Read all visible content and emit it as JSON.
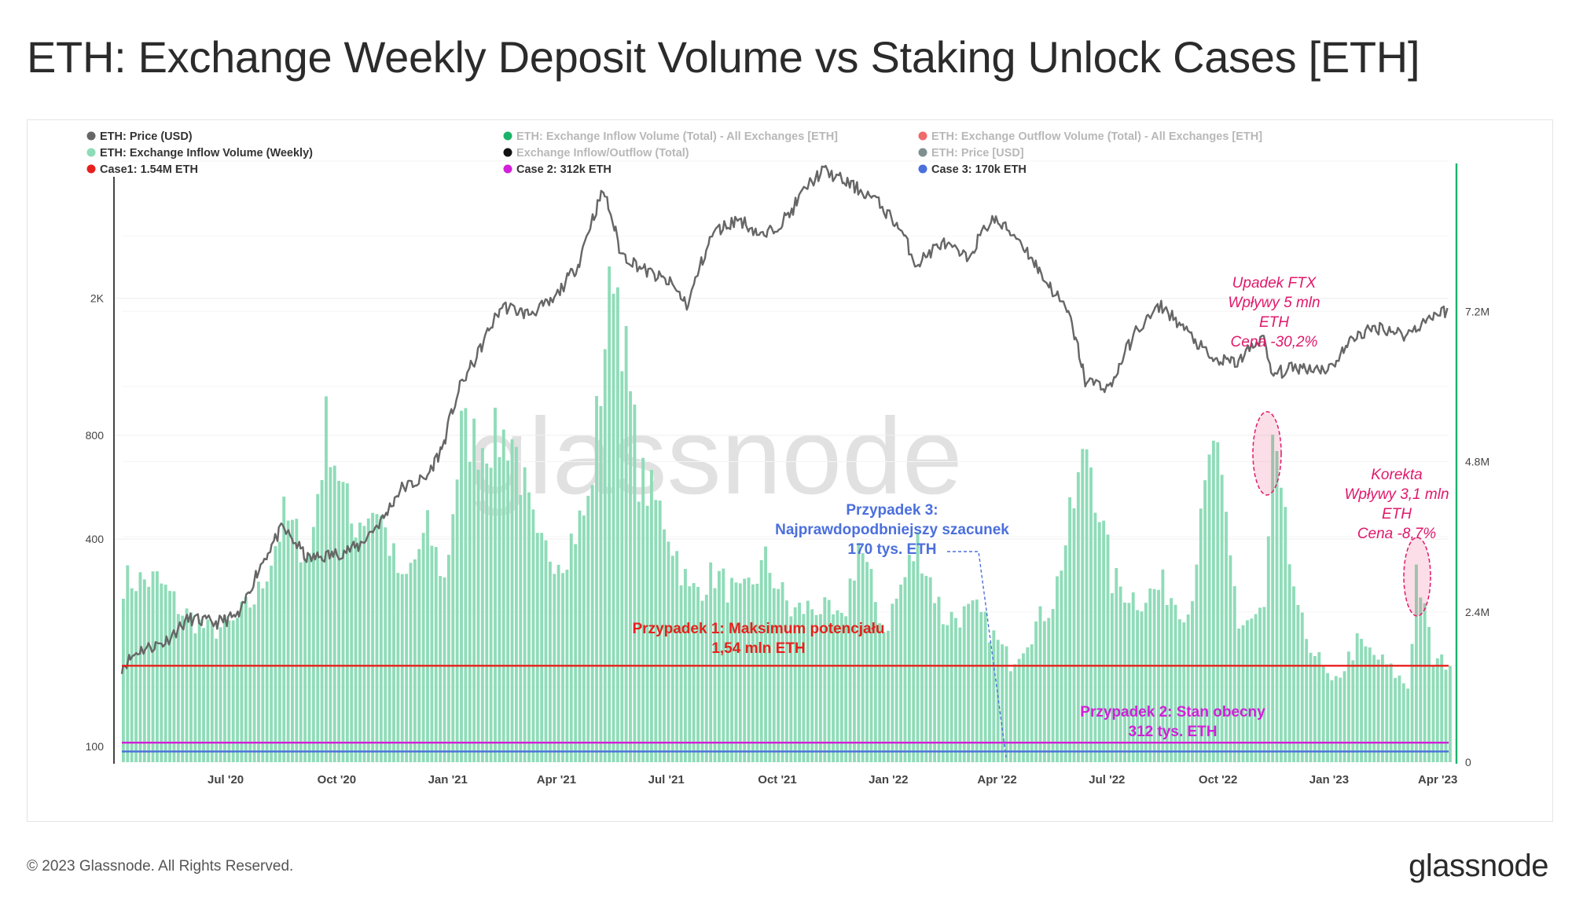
{
  "title": "ETH: Exchange Weekly Deposit Volume vs Staking Unlock Cases [ETH]",
  "footer": {
    "copyright": "© 2023 Glassnode. All Rights Reserved.",
    "logo": "glassnode"
  },
  "watermark": "glassnode",
  "legend": [
    {
      "label": "ETH: Price (USD)",
      "color": "#666666",
      "dim": false
    },
    {
      "label": "ETH: Exchange Inflow Volume (Total) - All Exchanges [ETH]",
      "color": "#1bb36b",
      "dim": true
    },
    {
      "label": "ETH: Exchange Outflow Volume (Total) - All Exchanges [ETH]",
      "color": "#f06a6a",
      "dim": true
    },
    {
      "label": "ETH: Exchange Inflow Volume (Weekly)",
      "color": "#8fdcb8",
      "dim": false
    },
    {
      "label": "Exchange Inflow/Outflow (Total)",
      "color": "#111111",
      "dim": true
    },
    {
      "label": "ETH: Price [USD]",
      "color": "#7f8f8f",
      "dim": true
    },
    {
      "label": "Case1: 1.54M ETH",
      "color": "#e8201d",
      "dim": false
    },
    {
      "label": "Case 2: 312k ETH",
      "color": "#d21fd8",
      "dim": false
    },
    {
      "label": "Case 3: 170k ETH",
      "color": "#4b6fdc",
      "dim": false
    }
  ],
  "annotations": {
    "case1": [
      "Przypadek 1: Maksimum potencjału",
      "1,54 mln ETH"
    ],
    "case2": [
      "Przypadek 2: Stan obecny",
      "312 tys. ETH"
    ],
    "case3": [
      "Przypadek 3:",
      "Najprawdopodbniejszy szacunek",
      "170 tys. ETH"
    ],
    "ftx": [
      "Upadek FTX",
      "Wpływy 5 mln",
      "ETH",
      "Cena -30,2%"
    ],
    "korekta": [
      "Korekta",
      "Wpływy 3,1 mln",
      "ETH",
      "Cena -8,7%"
    ]
  },
  "colors": {
    "bars": "#8fdcb8",
    "price": "#666666",
    "case1": "#e8201d",
    "case2": "#d21fd8",
    "case3": "#4b6fdc",
    "annotation_pink": "#e0186b",
    "right_axis": "#1bb36b"
  },
  "chart_data": {
    "type": "bar",
    "x_ticks": [
      "Jul '20",
      "Oct '20",
      "Jan '21",
      "Apr '21",
      "Jul '21",
      "Oct '21",
      "Jan '22",
      "Apr '22",
      "Jul '22",
      "Oct '22",
      "Jan '23",
      "Apr '23"
    ],
    "x_tick_dates": [
      "2020-07-01",
      "2020-10-01",
      "2021-01-01",
      "2021-04-01",
      "2021-07-01",
      "2021-10-01",
      "2022-01-01",
      "2022-04-01",
      "2022-07-01",
      "2022-10-01",
      "2023-01-01",
      "2023-04-01"
    ],
    "x_range": [
      "2020-04-06",
      "2023-04-10"
    ],
    "left_axis": {
      "scale": "log",
      "ticks": [
        100,
        400,
        800,
        2000
      ],
      "tick_labels": [
        "100",
        "400",
        "800",
        "2K"
      ],
      "range": [
        90,
        5000
      ]
    },
    "right_axis": {
      "scale": "linear",
      "ticks": [
        0,
        2400000,
        4800000,
        7200000
      ],
      "tick_labels": [
        "0",
        "2.4M",
        "4.8M",
        "7.2M"
      ],
      "range": [
        0,
        9600000
      ]
    },
    "reference_lines": [
      {
        "name": "Case1: 1.54M ETH",
        "value": 1540000,
        "axis": "right"
      },
      {
        "name": "Case 2: 312k ETH",
        "value": 312000,
        "axis": "right"
      },
      {
        "name": "Case 3: 170k ETH",
        "value": 170000,
        "axis": "right"
      }
    ],
    "series": [
      {
        "name": "ETH: Exchange Inflow Volume (Weekly)",
        "axis": "right",
        "type": "area",
        "points": [
          [
            "2020-04-06",
            2900000.0
          ],
          [
            "2020-05-04",
            2900000.0
          ],
          [
            "2020-05-25",
            2400000.0
          ],
          [
            "2020-06-15",
            2100000.0
          ],
          [
            "2020-07-06",
            2200000.0
          ],
          [
            "2020-07-27",
            2700000.0
          ],
          [
            "2020-08-17",
            3900000.0
          ],
          [
            "2020-09-07",
            3300000.0
          ],
          [
            "2020-09-21",
            5400000.0
          ],
          [
            "2020-10-12",
            3800000.0
          ],
          [
            "2020-11-02",
            4100000.0
          ],
          [
            "2020-11-23",
            2800000.0
          ],
          [
            "2020-12-14",
            3700000.0
          ],
          [
            "2020-12-28",
            2900000.0
          ],
          [
            "2021-01-11",
            5300000.0
          ],
          [
            "2021-01-25",
            5100000.0
          ],
          [
            "2021-02-22",
            5200000.0
          ],
          [
            "2021-03-15",
            3400000.0
          ],
          [
            "2021-04-05",
            3300000.0
          ],
          [
            "2021-04-26",
            4100000.0
          ],
          [
            "2021-05-17",
            8100000.0
          ],
          [
            "2021-06-07",
            4600000.0
          ],
          [
            "2021-06-28",
            3900000.0
          ],
          [
            "2021-07-19",
            2700000.0
          ],
          [
            "2021-08-09",
            3000000.0
          ],
          [
            "2021-08-30",
            2600000.0
          ],
          [
            "2021-09-20",
            3200000.0
          ],
          [
            "2021-10-11",
            2400000.0
          ],
          [
            "2021-11-01",
            2500000.0
          ],
          [
            "2021-11-22",
            2200000.0
          ],
          [
            "2021-12-06",
            3500000.0
          ],
          [
            "2021-12-27",
            2100000.0
          ],
          [
            "2022-01-24",
            3500000.0
          ],
          [
            "2022-02-14",
            2300000.0
          ],
          [
            "2022-03-14",
            2400000.0
          ],
          [
            "2022-04-11",
            1600000.0
          ],
          [
            "2022-05-16",
            2600000.0
          ],
          [
            "2022-06-13",
            5100000.0
          ],
          [
            "2022-07-04",
            2900000.0
          ],
          [
            "2022-07-25",
            2600000.0
          ],
          [
            "2022-08-15",
            2800000.0
          ],
          [
            "2022-09-05",
            2400000.0
          ],
          [
            "2022-09-26",
            5200000.0
          ],
          [
            "2022-10-17",
            2200000.0
          ],
          [
            "2022-11-07",
            2400000.0
          ],
          [
            "2022-11-14",
            5000000.0
          ],
          [
            "2022-12-05",
            2300000.0
          ],
          [
            "2023-01-02",
            1200000.0
          ],
          [
            "2023-01-23",
            1900000.0
          ],
          [
            "2023-02-13",
            1600000.0
          ],
          [
            "2023-03-06",
            1200000.0
          ],
          [
            "2023-03-13",
            3100000.0
          ],
          [
            "2023-03-27",
            1600000.0
          ],
          [
            "2023-04-10",
            1600000.0
          ]
        ]
      },
      {
        "name": "ETH: Price (USD)",
        "axis": "left",
        "type": "line",
        "points": [
          [
            "2020-04-06",
            170
          ],
          [
            "2020-04-20",
            190
          ],
          [
            "2020-05-11",
            200
          ],
          [
            "2020-06-01",
            235
          ],
          [
            "2020-06-22",
            228
          ],
          [
            "2020-07-13",
            240
          ],
          [
            "2020-07-27",
            320
          ],
          [
            "2020-08-17",
            430
          ],
          [
            "2020-09-07",
            350
          ],
          [
            "2020-09-28",
            360
          ],
          [
            "2020-10-19",
            380
          ],
          [
            "2020-11-09",
            460
          ],
          [
            "2020-11-23",
            560
          ],
          [
            "2020-12-14",
            600
          ],
          [
            "2020-12-28",
            740
          ],
          [
            "2021-01-11",
            1100
          ],
          [
            "2021-01-25",
            1350
          ],
          [
            "2021-02-15",
            1900
          ],
          [
            "2021-03-08",
            1800
          ],
          [
            "2021-03-29",
            1950
          ],
          [
            "2021-04-19",
            2500
          ],
          [
            "2021-05-10",
            4100
          ],
          [
            "2021-05-24",
            2700
          ],
          [
            "2021-06-14",
            2400
          ],
          [
            "2021-07-05",
            2200
          ],
          [
            "2021-07-19",
            1900
          ],
          [
            "2021-08-09",
            3100
          ],
          [
            "2021-08-30",
            3400
          ],
          [
            "2021-09-20",
            3000
          ],
          [
            "2021-10-11",
            3500
          ],
          [
            "2021-10-25",
            4200
          ],
          [
            "2021-11-08",
            4700
          ],
          [
            "2021-11-29",
            4300
          ],
          [
            "2021-12-20",
            3900
          ],
          [
            "2022-01-10",
            3200
          ],
          [
            "2022-01-24",
            2500
          ],
          [
            "2022-02-14",
            2900
          ],
          [
            "2022-03-07",
            2600
          ],
          [
            "2022-03-28",
            3400
          ],
          [
            "2022-04-18",
            3000
          ],
          [
            "2022-05-09",
            2300
          ],
          [
            "2022-05-30",
            1800
          ],
          [
            "2022-06-13",
            1150
          ],
          [
            "2022-07-04",
            1100
          ],
          [
            "2022-07-25",
            1600
          ],
          [
            "2022-08-15",
            1900
          ],
          [
            "2022-09-05",
            1600
          ],
          [
            "2022-09-26",
            1320
          ],
          [
            "2022-10-17",
            1300
          ],
          [
            "2022-11-07",
            1550
          ],
          [
            "2022-11-14",
            1200
          ],
          [
            "2022-12-05",
            1260
          ],
          [
            "2023-01-02",
            1250
          ],
          [
            "2023-01-23",
            1560
          ],
          [
            "2023-02-13",
            1650
          ],
          [
            "2023-03-06",
            1560
          ],
          [
            "2023-03-27",
            1780
          ],
          [
            "2023-04-10",
            1850
          ]
        ]
      }
    ]
  }
}
